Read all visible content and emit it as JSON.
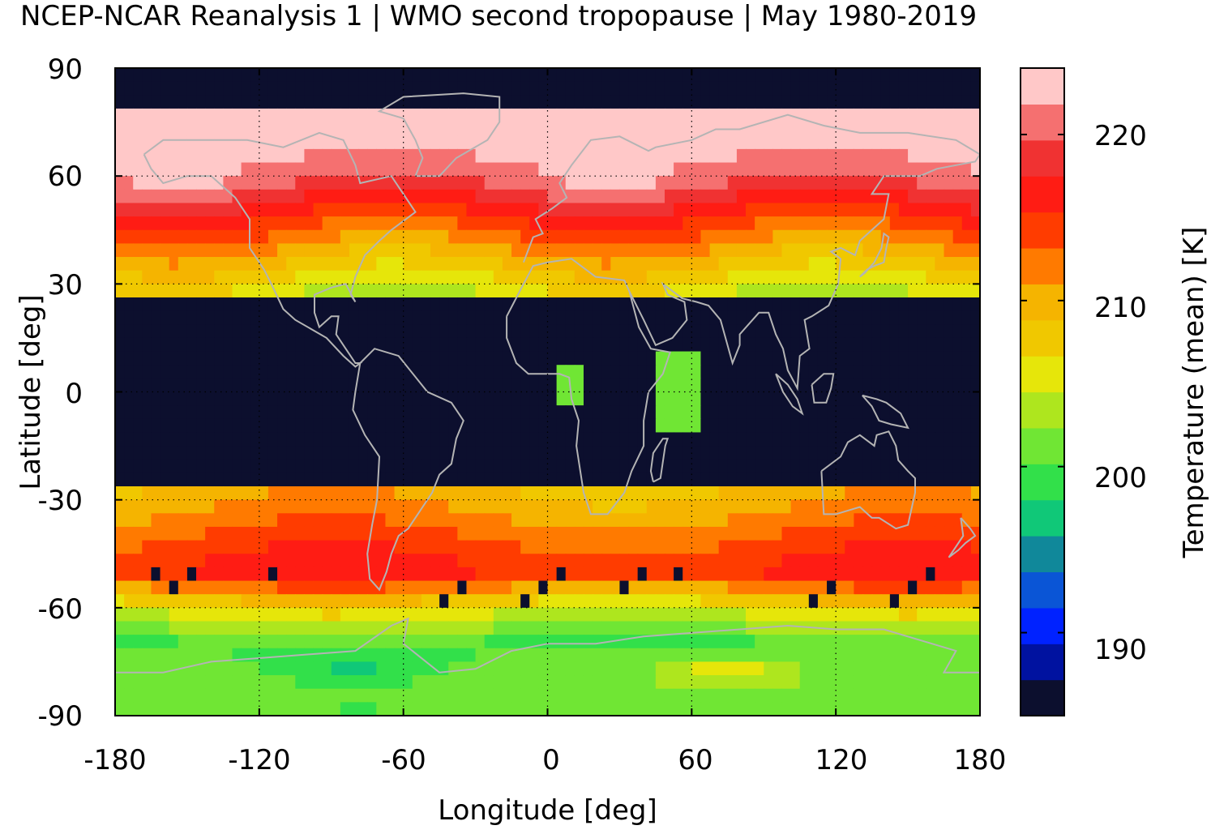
{
  "title": "NCEP-NCAR Reanalysis 1 | WMO second tropopause | May 1980-2019",
  "xlabel": "Longitude [deg]",
  "ylabel": "Latitude [deg]",
  "colorbar_label": "Temperature (mean) [K]",
  "x_ticks": [
    "-180",
    "-120",
    "-60",
    "0",
    "60",
    "120",
    "180"
  ],
  "y_ticks": [
    "90",
    "60",
    "30",
    "0",
    "-30",
    "-60",
    "-90"
  ],
  "colorbar_ticks": [
    "220",
    "210",
    "200",
    "190"
  ],
  "chart_data": {
    "type": "heatmap",
    "title": "NCEP-NCAR Reanalysis 1 | WMO second tropopause | May 1980-2019",
    "xlabel": "Longitude [deg]",
    "ylabel": "Latitude [deg]",
    "colorbar_label": "Temperature (mean) [K]",
    "xlim": [
      -180,
      180
    ],
    "ylim": [
      -90,
      90
    ],
    "x_ticks": [
      -180,
      -120,
      -60,
      0,
      60,
      120,
      180
    ],
    "y_ticks": [
      90,
      60,
      30,
      0,
      -30,
      -60,
      -90
    ],
    "colorbar_range": [
      185,
      224
    ],
    "colorbar_ticks": [
      190,
      200,
      210,
      220
    ],
    "colorbar_colors": [
      "#0c0f2e",
      "#0012a0",
      "#0022ff",
      "#0a55d6",
      "#10889a",
      "#10c878",
      "#32e04a",
      "#70e634",
      "#aee61e",
      "#e6e60a",
      "#f0c800",
      "#f5b400",
      "#ff7a00",
      "#ff3c00",
      "#ff1c14",
      "#f03232",
      "#f57070",
      "#ffc8c8"
    ],
    "grid": "dotted",
    "overlay": "coastlines",
    "no_data_color": "#0c0f2e",
    "zonal_mean_profile": {
      "lat": [
        90,
        80,
        70,
        60,
        50,
        40,
        30,
        25,
        20,
        10,
        0,
        -10,
        -20,
        -25,
        -30,
        -40,
        -50,
        -60,
        -70,
        -80,
        -90
      ],
      "temperature": [
        null,
        223,
        223,
        221,
        216,
        211,
        206,
        204,
        null,
        null,
        null,
        null,
        null,
        209,
        210,
        213,
        216,
        206,
        200,
        201,
        200
      ]
    },
    "no_data_regions": "tropics between about 23N and 24S; north polar cap; scattered patches near 50S-65S"
  }
}
